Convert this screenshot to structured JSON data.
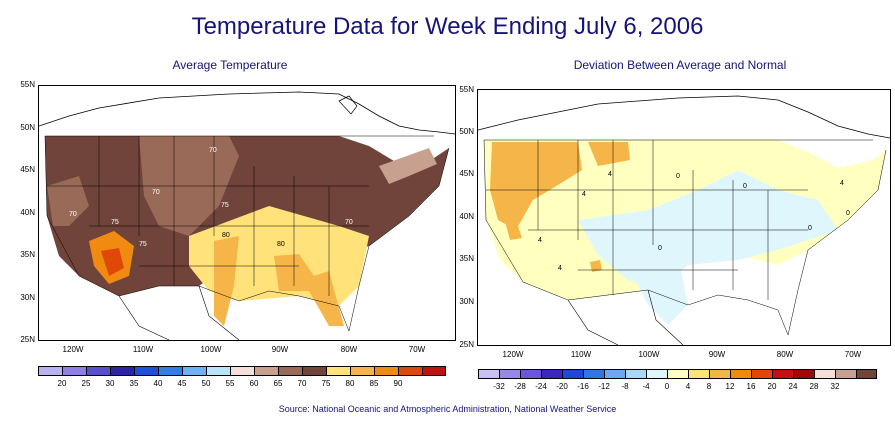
{
  "title": "Temperature Data for Week Ending July 6, 2006",
  "left_map": {
    "subtitle": "Average Temperature",
    "lat_labels": [
      "55N",
      "50N",
      "45N",
      "40N",
      "35N",
      "30N",
      "25N"
    ],
    "lon_labels": [
      "120W",
      "110W",
      "100W",
      "90W",
      "80W",
      "70W"
    ],
    "contour_labels": [
      "70",
      "70",
      "70",
      "75",
      "75",
      "75",
      "80",
      "80",
      "70"
    ],
    "legend_values": [
      "20",
      "25",
      "30",
      "35",
      "40",
      "45",
      "50",
      "55",
      "60",
      "65",
      "70",
      "75",
      "80",
      "85",
      "90"
    ],
    "legend_colors": [
      "#b9b2f0",
      "#8d7fe6",
      "#5a4ed0",
      "#2c22a8",
      "#1d4fd8",
      "#2f7de6",
      "#6fb0f2",
      "#b8e4f8",
      "#f4e0d8",
      "#c8a090",
      "#9a6a58",
      "#70443a",
      "#ffe27a",
      "#f5b548",
      "#f08a10",
      "#e04808",
      "#c01010"
    ]
  },
  "right_map": {
    "subtitle": "Deviation Between Average and Normal",
    "lat_labels": [
      "55N",
      "50N",
      "45N",
      "40N",
      "35N",
      "30N",
      "25N"
    ],
    "lon_labels": [
      "120W",
      "110W",
      "100W",
      "90W",
      "80W",
      "70W"
    ],
    "contour_labels": [
      "4",
      "4",
      "4",
      "4",
      "0",
      "0",
      "0",
      "0",
      "0",
      "4"
    ],
    "legend_values": [
      "-32",
      "-28",
      "-24",
      "-20",
      "-16",
      "-12",
      "-8",
      "-4",
      "0",
      "4",
      "8",
      "12",
      "16",
      "20",
      "24",
      "28",
      "32"
    ],
    "legend_colors": [
      "#c8c0f5",
      "#9888e8",
      "#6a58d8",
      "#3c28b8",
      "#1e48d0",
      "#2c78e0",
      "#6aaaf0",
      "#a8d8f8",
      "#dff6fc",
      "#ffffc0",
      "#ffe27a",
      "#f5b548",
      "#f08a10",
      "#e04808",
      "#c01010",
      "#a00808",
      "#f4e0d8",
      "#c8a090",
      "#70443a"
    ]
  },
  "source": "Source:  National Oceanic and Atmospheric Administration, National Weather Service"
}
